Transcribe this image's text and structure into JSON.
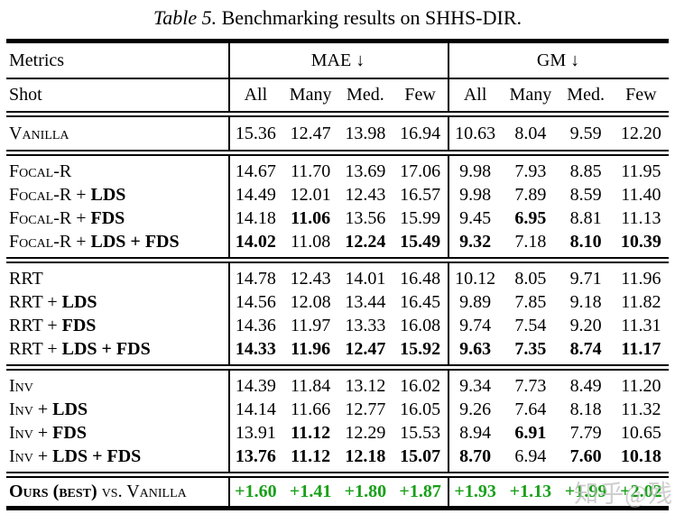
{
  "caption": {
    "label": "Table 5.",
    "text": " Benchmarking results on SHHS-DIR."
  },
  "header": {
    "metrics_label": "Metrics",
    "shot_label": "Shot",
    "mae_label": "MAE",
    "gm_label": "GM",
    "down_arrow": "↓",
    "shot_columns": [
      "All",
      "Many",
      "Med.",
      "Few",
      "All",
      "Many",
      "Med.",
      "Few"
    ]
  },
  "colors": {
    "improvement_green": "#18a018",
    "text": "#000000",
    "background": "#ffffff"
  },
  "sections": [
    {
      "name": "vanilla",
      "rows": [
        {
          "label": [
            {
              "t": "Vanilla",
              "b": false
            }
          ],
          "values": [
            "15.36",
            "12.47",
            "13.98",
            "16.94",
            "10.63",
            "8.04",
            "9.59",
            "12.20"
          ],
          "bold": [
            0,
            0,
            0,
            0,
            0,
            0,
            0,
            0
          ]
        }
      ]
    },
    {
      "name": "focal-r",
      "rows": [
        {
          "label": [
            {
              "t": "Focal-R",
              "b": false
            }
          ],
          "values": [
            "14.67",
            "11.70",
            "13.69",
            "17.06",
            "9.98",
            "7.93",
            "8.85",
            "11.95"
          ],
          "bold": [
            0,
            0,
            0,
            0,
            0,
            0,
            0,
            0
          ]
        },
        {
          "label": [
            {
              "t": "Focal-R + ",
              "b": false
            },
            {
              "t": "LDS",
              "b": true
            }
          ],
          "values": [
            "14.49",
            "12.01",
            "12.43",
            "16.57",
            "9.98",
            "7.89",
            "8.59",
            "11.40"
          ],
          "bold": [
            0,
            0,
            0,
            0,
            0,
            0,
            0,
            0
          ]
        },
        {
          "label": [
            {
              "t": "Focal-R + ",
              "b": false
            },
            {
              "t": "FDS",
              "b": true
            }
          ],
          "values": [
            "14.18",
            "11.06",
            "13.56",
            "15.99",
            "9.45",
            "6.95",
            "8.81",
            "11.13"
          ],
          "bold": [
            0,
            1,
            0,
            0,
            0,
            1,
            0,
            0
          ]
        },
        {
          "label": [
            {
              "t": "Focal-R + ",
              "b": false
            },
            {
              "t": "LDS + FDS",
              "b": true
            }
          ],
          "values": [
            "14.02",
            "11.08",
            "12.24",
            "15.49",
            "9.32",
            "7.18",
            "8.10",
            "10.39"
          ],
          "bold": [
            1,
            0,
            1,
            1,
            1,
            0,
            1,
            1
          ]
        }
      ]
    },
    {
      "name": "rrt",
      "rows": [
        {
          "label": [
            {
              "t": "RRT",
              "b": false
            }
          ],
          "values": [
            "14.78",
            "12.43",
            "14.01",
            "16.48",
            "10.12",
            "8.05",
            "9.71",
            "11.96"
          ],
          "bold": [
            0,
            0,
            0,
            0,
            0,
            0,
            0,
            0
          ]
        },
        {
          "label": [
            {
              "t": "RRT + ",
              "b": false
            },
            {
              "t": "LDS",
              "b": true
            }
          ],
          "values": [
            "14.56",
            "12.08",
            "13.44",
            "16.45",
            "9.89",
            "7.85",
            "9.18",
            "11.82"
          ],
          "bold": [
            0,
            0,
            0,
            0,
            0,
            0,
            0,
            0
          ]
        },
        {
          "label": [
            {
              "t": "RRT + ",
              "b": false
            },
            {
              "t": "FDS",
              "b": true
            }
          ],
          "values": [
            "14.36",
            "11.97",
            "13.33",
            "16.08",
            "9.74",
            "7.54",
            "9.20",
            "11.31"
          ],
          "bold": [
            0,
            0,
            0,
            0,
            0,
            0,
            0,
            0
          ]
        },
        {
          "label": [
            {
              "t": "RRT + ",
              "b": false
            },
            {
              "t": "LDS + FDS",
              "b": true
            }
          ],
          "values": [
            "14.33",
            "11.96",
            "12.47",
            "15.92",
            "9.63",
            "7.35",
            "8.74",
            "11.17"
          ],
          "bold": [
            1,
            1,
            1,
            1,
            1,
            1,
            1,
            1
          ]
        }
      ]
    },
    {
      "name": "inv",
      "rows": [
        {
          "label": [
            {
              "t": "Inv",
              "b": false
            }
          ],
          "values": [
            "14.39",
            "11.84",
            "13.12",
            "16.02",
            "9.34",
            "7.73",
            "8.49",
            "11.20"
          ],
          "bold": [
            0,
            0,
            0,
            0,
            0,
            0,
            0,
            0
          ]
        },
        {
          "label": [
            {
              "t": "Inv + ",
              "b": false
            },
            {
              "t": "LDS",
              "b": true
            }
          ],
          "values": [
            "14.14",
            "11.66",
            "12.77",
            "16.05",
            "9.26",
            "7.64",
            "8.18",
            "11.32"
          ],
          "bold": [
            0,
            0,
            0,
            0,
            0,
            0,
            0,
            0
          ]
        },
        {
          "label": [
            {
              "t": "Inv + ",
              "b": false
            },
            {
              "t": "FDS",
              "b": true
            }
          ],
          "values": [
            "13.91",
            "11.12",
            "12.29",
            "15.53",
            "8.94",
            "6.91",
            "7.79",
            "10.65"
          ],
          "bold": [
            0,
            1,
            0,
            0,
            0,
            1,
            0,
            0
          ]
        },
        {
          "label": [
            {
              "t": "Inv + ",
              "b": false
            },
            {
              "t": "LDS + FDS",
              "b": true
            }
          ],
          "values": [
            "13.76",
            "11.12",
            "12.18",
            "15.07",
            "8.70",
            "6.94",
            "7.60",
            "10.18"
          ],
          "bold": [
            1,
            1,
            1,
            1,
            1,
            0,
            1,
            1
          ]
        }
      ]
    }
  ],
  "footer": {
    "label": [
      {
        "t": "Ours (best)",
        "b": true
      },
      {
        "t": " vs. Vanilla",
        "b": false
      }
    ],
    "values": [
      "+1.60",
      "+1.41",
      "+1.80",
      "+1.87",
      "+1.93",
      "+1.13",
      "+1.99",
      "+2.02"
    ]
  },
  "watermark": "知乎@残"
}
